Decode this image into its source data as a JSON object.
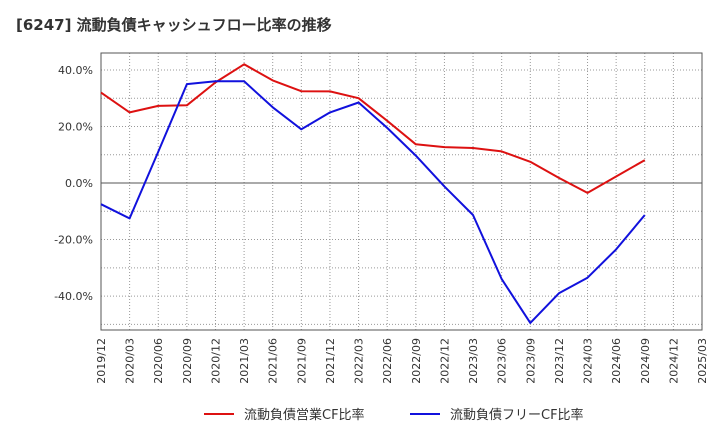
{
  "title": "[6247]  流動負債キャッシュフロー比率の推移",
  "chart_data": {
    "type": "line",
    "title": "[6247]  流動負債キャッシュフロー比率の推移",
    "xlabel": "",
    "ylabel": "",
    "x": [
      "2019/12",
      "2020/03",
      "2020/06",
      "2020/09",
      "2020/12",
      "2021/03",
      "2021/06",
      "2021/09",
      "2021/12",
      "2022/03",
      "2022/06",
      "2022/09",
      "2022/12",
      "2023/03",
      "2023/06",
      "2023/09",
      "2023/12",
      "2024/03",
      "2024/06",
      "2024/09",
      "2024/12",
      "2025/03"
    ],
    "y_ticks": [
      "40.0%",
      "20.0%",
      "0.0%",
      "-20.0%",
      "-40.0%"
    ],
    "y_tick_values": [
      40,
      20,
      0,
      -20,
      -40
    ],
    "ylim": [
      -52,
      46
    ],
    "grid": true,
    "legend_position": "bottom",
    "series": [
      {
        "name": "流動負債営業CF比率",
        "color": "#dd1111",
        "values": [
          32.0,
          25.0,
          27.3,
          27.5,
          35.6,
          42.0,
          36.3,
          32.5,
          32.4,
          30.0,
          22.0,
          13.7,
          12.7,
          12.4,
          11.2,
          7.5,
          1.8,
          -3.5,
          2.3,
          8.1,
          null,
          null
        ]
      },
      {
        "name": "流動負債フリーCF比率",
        "color": "#1111dd",
        "values": [
          -7.5,
          -12.5,
          11.0,
          35.0,
          36.0,
          36.0,
          26.8,
          19.0,
          25.0,
          28.5,
          19.5,
          9.7,
          -1.2,
          -11.3,
          -34.0,
          -49.5,
          -39.0,
          -33.5,
          -23.5,
          -11.3,
          null,
          null
        ]
      }
    ]
  }
}
